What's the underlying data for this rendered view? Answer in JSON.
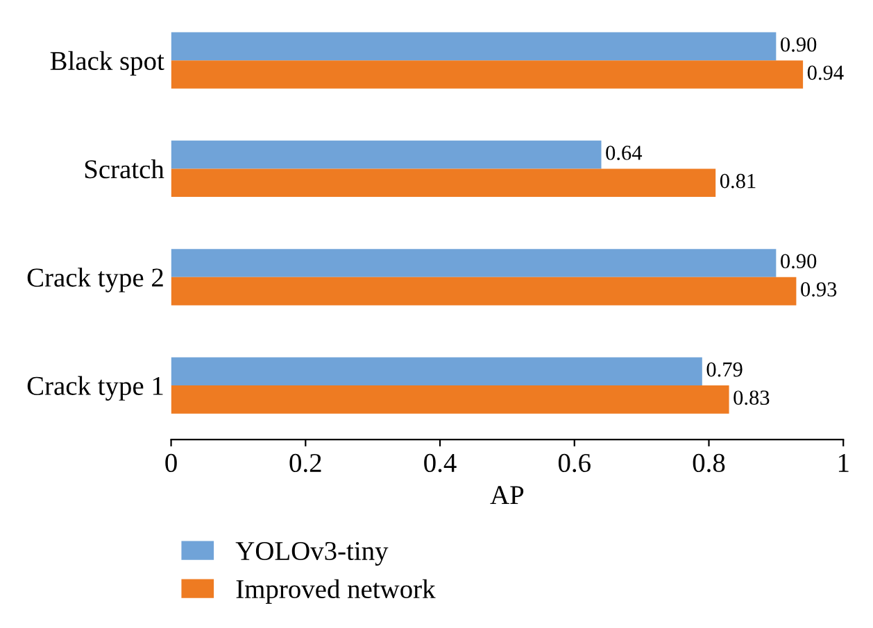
{
  "chart_data": {
    "type": "bar",
    "orientation": "horizontal",
    "xlabel": "AP",
    "categories": [
      "Black spot",
      "Scratch",
      "Crack type 2",
      "Crack type 1"
    ],
    "series": [
      {
        "name": "YOLOv3-tiny",
        "color": "#70a3d8",
        "values": [
          0.9,
          0.64,
          0.9,
          0.79
        ]
      },
      {
        "name": "Improved network",
        "color": "#ee7b22",
        "values": [
          0.94,
          0.81,
          0.93,
          0.83
        ]
      }
    ],
    "value_labels": [
      [
        "0.90",
        "0.64",
        "0.90",
        "0.79"
      ],
      [
        "0.94",
        "0.81",
        "0.93",
        "0.83"
      ]
    ],
    "xlim": [
      0,
      1
    ],
    "xticks": [
      0,
      0.2,
      0.4,
      0.6,
      0.8,
      1
    ],
    "grid": false,
    "legend": "bottom"
  }
}
